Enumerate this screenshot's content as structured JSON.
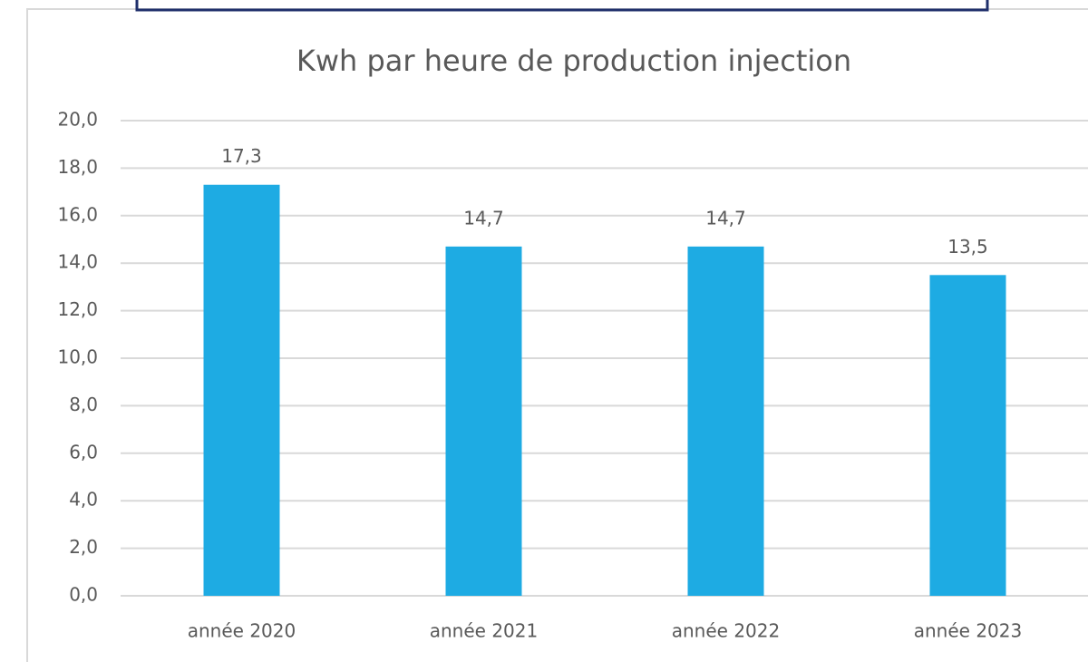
{
  "chart_data": {
    "type": "bar",
    "title": "Kwh par heure de production injection",
    "categories": [
      "année 2020",
      "année 2021",
      "année 2022",
      "année 2023"
    ],
    "values": [
      17.3,
      14.7,
      14.7,
      13.5
    ],
    "value_labels": [
      "17,3",
      "14,7",
      "14,7",
      "13,5"
    ],
    "color": "#1eabe3",
    "ylim": [
      0,
      20
    ],
    "yticks": [
      {
        "value": 0,
        "label": "0,0"
      },
      {
        "value": 2,
        "label": "2,0"
      },
      {
        "value": 4,
        "label": "4,0"
      },
      {
        "value": 6,
        "label": "6,0"
      },
      {
        "value": 8,
        "label": "8,0"
      },
      {
        "value": 10,
        "label": "10,0"
      },
      {
        "value": 12,
        "label": "12,0"
      },
      {
        "value": 14,
        "label": "14,0"
      },
      {
        "value": 16,
        "label": "16,0"
      },
      {
        "value": 18,
        "label": "18,0"
      },
      {
        "value": 20,
        "label": "20,0"
      }
    ],
    "grid": true
  }
}
